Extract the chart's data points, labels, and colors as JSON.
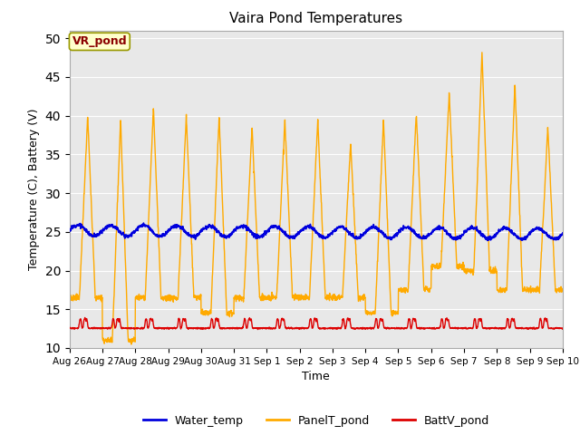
{
  "title": "Vaira Pond Temperatures",
  "xlabel": "Time",
  "ylabel": "Temperature (C), Battery (V)",
  "annotation": "VR_pond",
  "ylim": [
    10,
    51
  ],
  "yticks": [
    10,
    15,
    20,
    25,
    30,
    35,
    40,
    45,
    50
  ],
  "xtick_labels": [
    "Aug 26",
    "Aug 27",
    "Aug 28",
    "Aug 29",
    "Aug 30",
    "Aug 31",
    "Sep 1",
    "Sep 2",
    "Sep 3",
    "Sep 4",
    "Sep 5",
    "Sep 6",
    "Sep 7",
    "Sep 8",
    "Sep 9",
    "Sep 10"
  ],
  "water_color": "#0000dd",
  "panel_color": "#ffaa00",
  "batt_color": "#dd0000",
  "bg_color": "#e8e8e8",
  "legend_labels": [
    "Water_temp",
    "PanelT_pond",
    "BattV_pond"
  ],
  "n_days": 15,
  "pts_per_day": 144,
  "panel_min_vals": [
    16.5,
    11.0,
    16.5,
    16.5,
    14.5,
    16.5,
    16.5,
    16.5,
    16.5,
    14.5,
    17.5,
    20.5,
    20.0,
    17.5,
    17.5
  ],
  "panel_peaks": [
    40.0,
    39.5,
    41.0,
    40.0,
    40.0,
    38.5,
    39.5,
    39.5,
    36.5,
    39.5,
    40.5,
    43.0,
    48.0,
    44.0,
    38.5
  ]
}
